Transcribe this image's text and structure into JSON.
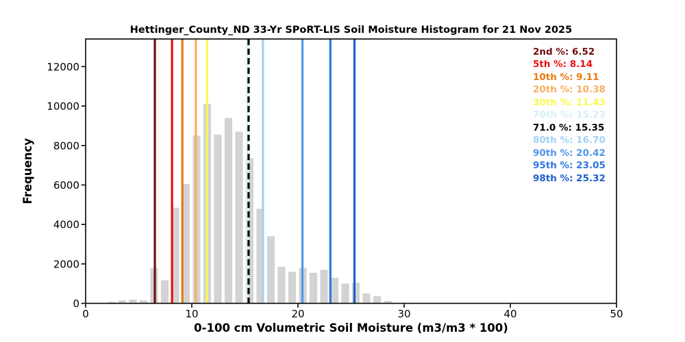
{
  "chart_data": {
    "type": "bar",
    "subtype": "histogram",
    "title": "Hettinger_County_ND 33-Yr SPoRT-LIS Soil Moisture Histogram for 21 Nov 2025",
    "xlabel": "0-100 cm Volumetric Soil Moisture (m3/m3 * 100)",
    "ylabel": "Frequency",
    "xlim": [
      0,
      50
    ],
    "ylim": [
      0,
      13400
    ],
    "xticks": [
      0,
      10,
      20,
      30,
      40,
      50
    ],
    "yticks": [
      0,
      2000,
      4000,
      6000,
      8000,
      10000,
      12000
    ],
    "grid": false,
    "bar_color": "#d3d3d3",
    "axis_color": "#000000",
    "bin_width": 0.72,
    "bin_centers": [
      2.45,
      3.45,
      4.45,
      5.45,
      6.45,
      7.45,
      8.45,
      9.45,
      10.45,
      11.45,
      12.45,
      13.45,
      14.45,
      15.45,
      16.45,
      17.45,
      18.45,
      19.45,
      20.45,
      21.45,
      22.45,
      23.45,
      24.45,
      25.45,
      26.45,
      27.45,
      28.45
    ],
    "frequencies": [
      80,
      150,
      190,
      150,
      1780,
      1170,
      4850,
      6050,
      8500,
      10100,
      8550,
      9400,
      8700,
      7350,
      4800,
      3400,
      1850,
      1600,
      1800,
      1550,
      1700,
      1300,
      1000,
      1050,
      500,
      370,
      120
    ],
    "percentile_lines": [
      {
        "label": "2nd %",
        "value": 6.52,
        "color": "#730d0d",
        "style": "solid"
      },
      {
        "label": "5th %",
        "value": 8.14,
        "color": "#e90f0f",
        "style": "solid"
      },
      {
        "label": "10th %",
        "value": 9.11,
        "color": "#e8790f",
        "style": "solid"
      },
      {
        "label": "20th %",
        "value": 10.38,
        "color": "#f9ae5f",
        "style": "solid"
      },
      {
        "label": "30th %",
        "value": 11.43,
        "color": "#f9f952",
        "style": "solid"
      },
      {
        "label": "70th %",
        "value": 15.23,
        "color": "#d7f0f5",
        "style": "solid"
      },
      {
        "label": "71.0 %",
        "value": 15.35,
        "color": "#000000",
        "style": "dashed"
      },
      {
        "label": "80th %",
        "value": 16.7,
        "color": "#a1d1f7",
        "style": "solid"
      },
      {
        "label": "90th %",
        "value": 20.42,
        "color": "#5295ea",
        "style": "solid"
      },
      {
        "label": "95th %",
        "value": 23.05,
        "color": "#2d77df",
        "style": "solid"
      },
      {
        "label": "98th %",
        "value": 25.32,
        "color": "#1f5ecd",
        "style": "solid"
      }
    ],
    "legend": {
      "position": "upper-right",
      "entries": [
        {
          "text": "2nd %: 6.52",
          "color": "#730d0d"
        },
        {
          "text": "5th %: 8.14",
          "color": "#e90f0f"
        },
        {
          "text": "10th %: 9.11",
          "color": "#e8790f"
        },
        {
          "text": "20th %: 10.38",
          "color": "#f9ae5f"
        },
        {
          "text": "30th %: 11.43",
          "color": "#f9f952"
        },
        {
          "text": "70th %: 15.23",
          "color": "#d7f0f5"
        },
        {
          "text": "71.0 %: 15.35",
          "color": "#000000"
        },
        {
          "text": "80th %: 16.70",
          "color": "#a1d1f7"
        },
        {
          "text": "90th %: 20.42",
          "color": "#5295ea"
        },
        {
          "text": "95th %: 23.05",
          "color": "#2d77df"
        },
        {
          "text": "98th %: 25.32",
          "color": "#1f5ecd"
        }
      ]
    }
  }
}
